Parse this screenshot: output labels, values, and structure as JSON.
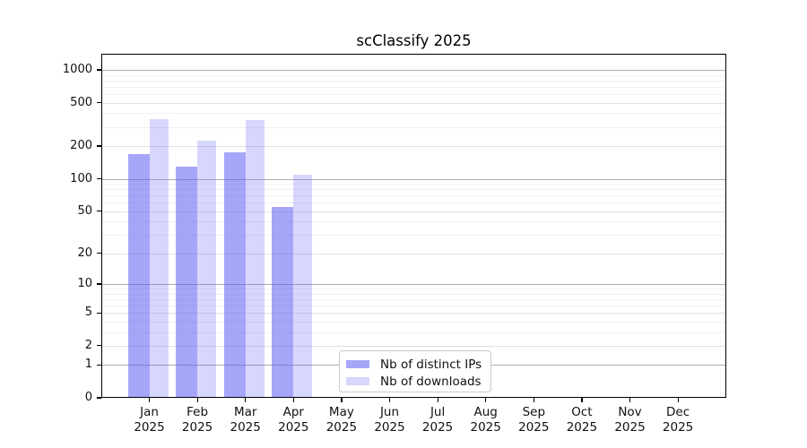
{
  "title": "scClassify 2025",
  "legend": {
    "items": [
      {
        "label": "Nb of distinct IPs",
        "swatch": "ip"
      },
      {
        "label": "Nb of downloads",
        "swatch": "dl"
      }
    ]
  },
  "colors": {
    "ip_bar": "rgba(97,97,245,0.56)",
    "dl_bar": "rgba(97,97,245,0.25)",
    "grid_major": "#adadad",
    "grid_mid": "#e1e1e1",
    "grid_minor": "#f0f0f0",
    "axis": "#000000"
  },
  "chart_data": {
    "type": "bar",
    "title": "scClassify 2025",
    "xlabel": "",
    "ylabel": "",
    "yscale": "log10(1+x)",
    "ylim": [
      0,
      1400
    ],
    "grid": "horizontal",
    "legend_position": "inside lower-center",
    "yticks": [
      0,
      1,
      2,
      5,
      10,
      20,
      50,
      100,
      200,
      500,
      1000
    ],
    "categories": [
      {
        "month": "Jan",
        "year": "2025"
      },
      {
        "month": "Feb",
        "year": "2025"
      },
      {
        "month": "Mar",
        "year": "2025"
      },
      {
        "month": "Apr",
        "year": "2025"
      },
      {
        "month": "May",
        "year": "2025"
      },
      {
        "month": "Jun",
        "year": "2025"
      },
      {
        "month": "Jul",
        "year": "2025"
      },
      {
        "month": "Aug",
        "year": "2025"
      },
      {
        "month": "Sep",
        "year": "2025"
      },
      {
        "month": "Oct",
        "year": "2025"
      },
      {
        "month": "Nov",
        "year": "2025"
      },
      {
        "month": "Dec",
        "year": "2025"
      }
    ],
    "series": [
      {
        "name": "Nb of distinct IPs",
        "values": [
          170,
          129,
          174,
          55,
          null,
          null,
          null,
          null,
          null,
          null,
          null,
          null
        ]
      },
      {
        "name": "Nb of downloads",
        "values": [
          355,
          225,
          350,
          110,
          null,
          null,
          null,
          null,
          null,
          null,
          null,
          null
        ]
      }
    ]
  }
}
